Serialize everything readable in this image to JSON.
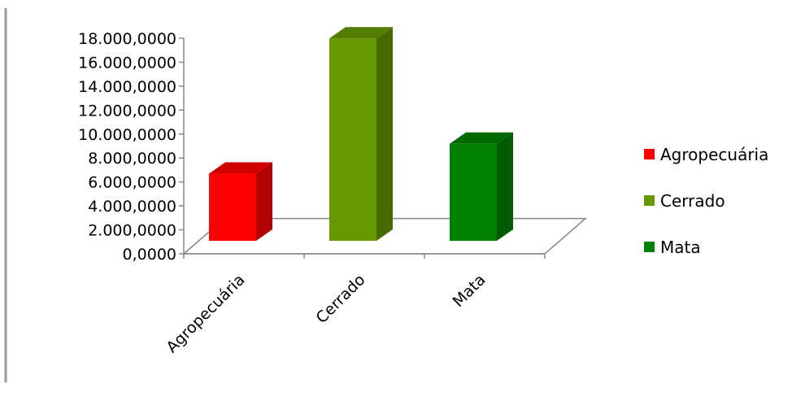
{
  "chart_data": {
    "type": "bar",
    "three_d": true,
    "categories": [
      "Agropecuária",
      "Cerrado",
      "Mata"
    ],
    "values": [
      5600000,
      16900000,
      8100000
    ],
    "colors": [
      "#ff0000",
      "#669900",
      "#008000"
    ],
    "ylim": [
      0,
      18000000
    ],
    "yticks": [
      0,
      2000000,
      4000000,
      6000000,
      8000000,
      10000000,
      12000000,
      14000000,
      16000000,
      18000000
    ],
    "ytick_labels": [
      "0,0000",
      "2.000,0000",
      "4.000,0000",
      "6.000,0000",
      "8.000,0000",
      "10.000,0000",
      "12.000,0000",
      "14.000,0000",
      "16.000,0000",
      "18.000,0000"
    ],
    "grid": false,
    "legend": {
      "placement": "right",
      "entries": [
        "Agropecuária",
        "Cerrado",
        "Mata"
      ]
    }
  }
}
